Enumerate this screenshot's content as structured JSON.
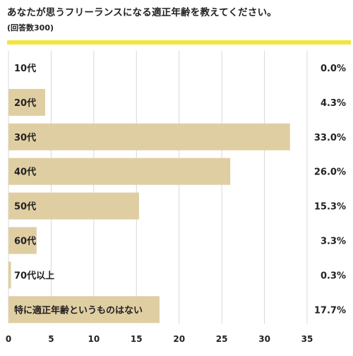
{
  "title": "あなたが思うフリーランスになる適正年齢を教えてください。",
  "subtitle": "(回答数300)",
  "colors": {
    "accent": "#f5e53a",
    "bar": "#e0ceA3",
    "grid": "#d8d8d8",
    "text": "#222222"
  },
  "chart_data": {
    "type": "bar",
    "orientation": "horizontal",
    "title": "あなたが思うフリーランスになる適正年齢を教えてください。",
    "subtitle": "(回答数300)",
    "categories": [
      "10代",
      "20代",
      "30代",
      "40代",
      "50代",
      "60代",
      "70代以上",
      "特に適正年齢というものはない"
    ],
    "values": [
      0.0,
      4.3,
      33.0,
      26.0,
      15.3,
      3.3,
      0.3,
      17.7
    ],
    "value_labels": [
      "0.0%",
      "4.3%",
      "33.0%",
      "26.0%",
      "15.3%",
      "3.3%",
      "0.3%",
      "17.7%"
    ],
    "xlim": [
      0,
      35
    ],
    "xticks": [
      0,
      5,
      10,
      15,
      20,
      25,
      30,
      35
    ],
    "xtick_labels": [
      "0",
      "5",
      "10",
      "15",
      "20",
      "25",
      "30",
      "35"
    ],
    "grid": true
  }
}
